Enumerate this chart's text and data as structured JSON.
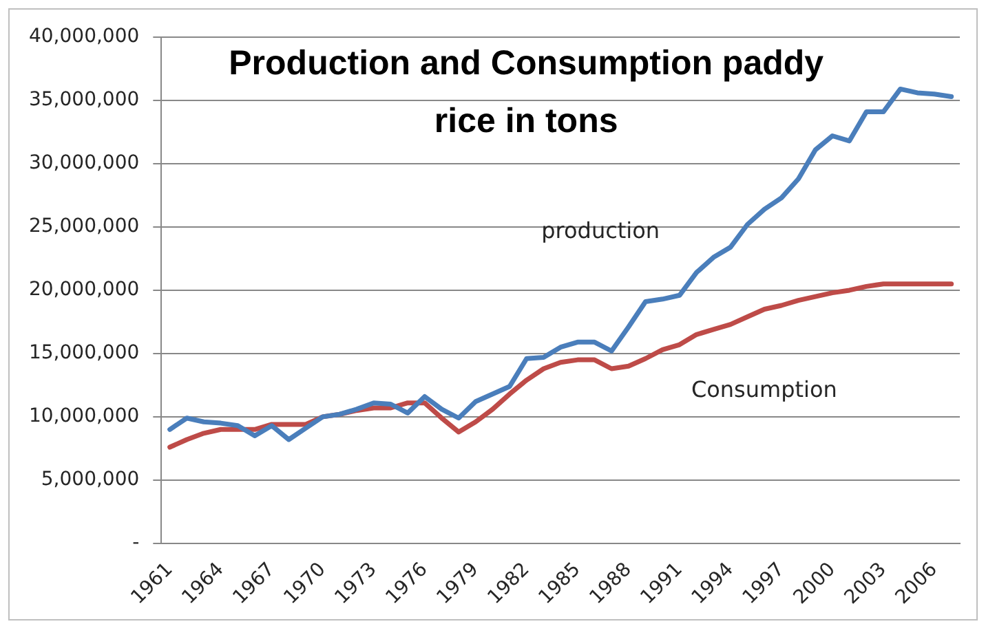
{
  "chart_data": {
    "type": "line",
    "title": "Production and Consumption paddy rice in tons",
    "x": [
      1961,
      1962,
      1963,
      1964,
      1965,
      1966,
      1967,
      1968,
      1969,
      1970,
      1971,
      1972,
      1973,
      1974,
      1975,
      1976,
      1977,
      1978,
      1979,
      1980,
      1981,
      1982,
      1983,
      1984,
      1985,
      1986,
      1987,
      1988,
      1989,
      1990,
      1991,
      1992,
      1993,
      1994,
      1995,
      1996,
      1997,
      1998,
      1999,
      2000,
      2001,
      2002,
      2003,
      2004,
      2005,
      2006,
      2007
    ],
    "series": [
      {
        "color": "#4a7ebb",
        "values": [
          9000000,
          9900000,
          9600000,
          9500000,
          9300000,
          8500000,
          9300000,
          8200000,
          9100000,
          10000000,
          10200000,
          10600000,
          11100000,
          11000000,
          10300000,
          11600000,
          10600000,
          9900000,
          11200000,
          11800000,
          12400000,
          14600000,
          14700000,
          15500000,
          15900000,
          15900000,
          15200000,
          17100000,
          19100000,
          19300000,
          19600000,
          21400000,
          22600000,
          23400000,
          25200000,
          26400000,
          27300000,
          28800000,
          31100000,
          32200000,
          31800000,
          34100000,
          34100000,
          35900000,
          35600000,
          35500000,
          35300000
        ]
      },
      {
        "color": "#be4b48",
        "values": [
          7600000,
          8200000,
          8700000,
          9000000,
          9000000,
          9000000,
          9400000,
          9400000,
          9400000,
          10000000,
          10200000,
          10500000,
          10700000,
          10700000,
          11100000,
          11100000,
          9900000,
          8800000,
          9600000,
          10600000,
          11800000,
          12900000,
          13800000,
          14300000,
          14500000,
          14500000,
          13800000,
          14000000,
          14600000,
          15300000,
          15700000,
          16500000,
          16900000,
          17300000,
          17900000,
          18500000,
          18800000,
          19200000,
          19500000,
          19800000,
          20000000,
          20300000,
          20500000,
          20500000,
          20500000,
          20500000,
          20500000
        ]
      }
    ],
    "xlim": [
      1960.5,
      2007.5
    ],
    "xticks": [
      1961,
      1964,
      1967,
      1970,
      1973,
      1976,
      1979,
      1982,
      1985,
      1988,
      1991,
      1994,
      1997,
      2000,
      2003,
      2006
    ],
    "ylim": [
      0,
      40000000
    ],
    "yticks": [
      {
        "value": 0,
        "label": "-"
      },
      {
        "value": 5000000,
        "label": "5,000,000"
      },
      {
        "value": 10000000,
        "label": "10,000,000"
      },
      {
        "value": 15000000,
        "label": "15,000,000"
      },
      {
        "value": 20000000,
        "label": "20,000,000"
      },
      {
        "value": 25000000,
        "label": "25,000,000"
      },
      {
        "value": 30000000,
        "label": "30,000,000"
      },
      {
        "value": 35000000,
        "label": "35,000,000"
      },
      {
        "value": 40000000,
        "label": "40,000,000"
      }
    ],
    "annotations": [
      "production",
      "Consumption"
    ],
    "grid": "y",
    "legend": false,
    "marker": "none",
    "line_style": "solid"
  }
}
